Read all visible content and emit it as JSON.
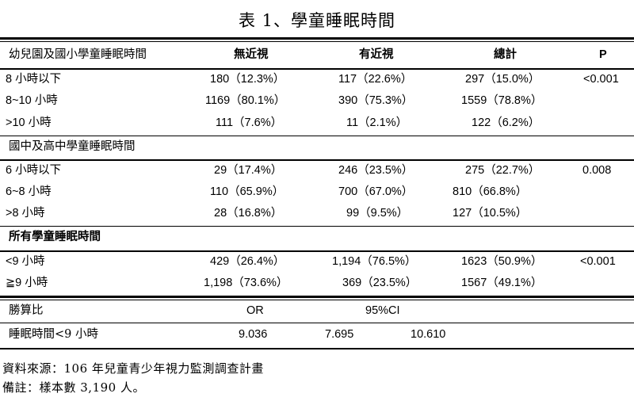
{
  "title": "表 1、學童睡眠時間",
  "header": [
    "幼兒園及國小學童睡眠時間",
    "無近視",
    "有近視",
    "總計",
    "P"
  ],
  "section1": {
    "rows": [
      [
        "8 小時以下",
        "180（12.3%）",
        "117（22.6%）",
        "297（15.0%）",
        "<0.001"
      ],
      [
        "8~10 小時",
        "1169（80.1%）",
        "390（75.3%）",
        "1559（78.8%）",
        ""
      ],
      [
        ">10 小時",
        "111（7.6%）",
        "11（2.1%）",
        "122（6.2%）",
        ""
      ]
    ]
  },
  "section2": {
    "label": "國中及高中學童睡眠時間",
    "rows": [
      [
        "6 小時以下",
        "29（17.4%）",
        "246（23.5%）",
        "275（22.7%）",
        "0.008"
      ],
      [
        "6~8 小時",
        "110（65.9%）",
        "700（67.0%）",
        "810（66.8%）",
        ""
      ],
      [
        ">8 小時",
        "28（16.8%）",
        "99（9.5%）",
        "127（10.5%）",
        ""
      ]
    ]
  },
  "section3": {
    "label": "所有學童睡眠時間",
    "rows": [
      [
        "<9 小時",
        "429（26.4%）",
        "1,194（76.5%）",
        "1623（50.9%）",
        "<0.001"
      ],
      [
        "≧9 小時",
        "1,198（73.6%）",
        "369（23.5%）",
        "1567（49.1%）",
        ""
      ]
    ]
  },
  "odds": {
    "label": "勝算比",
    "or_label": "OR",
    "ci_label": "95%CI",
    "row_label": "睡眠時間<9 小時",
    "or_value": "9.036",
    "ci_low": "7.695",
    "ci_high": "10.610"
  },
  "notes": {
    "source": "資料來源：106 年兒童青少年視力監測調查計畫",
    "remark": "備註：樣本數 3,190 人。"
  }
}
